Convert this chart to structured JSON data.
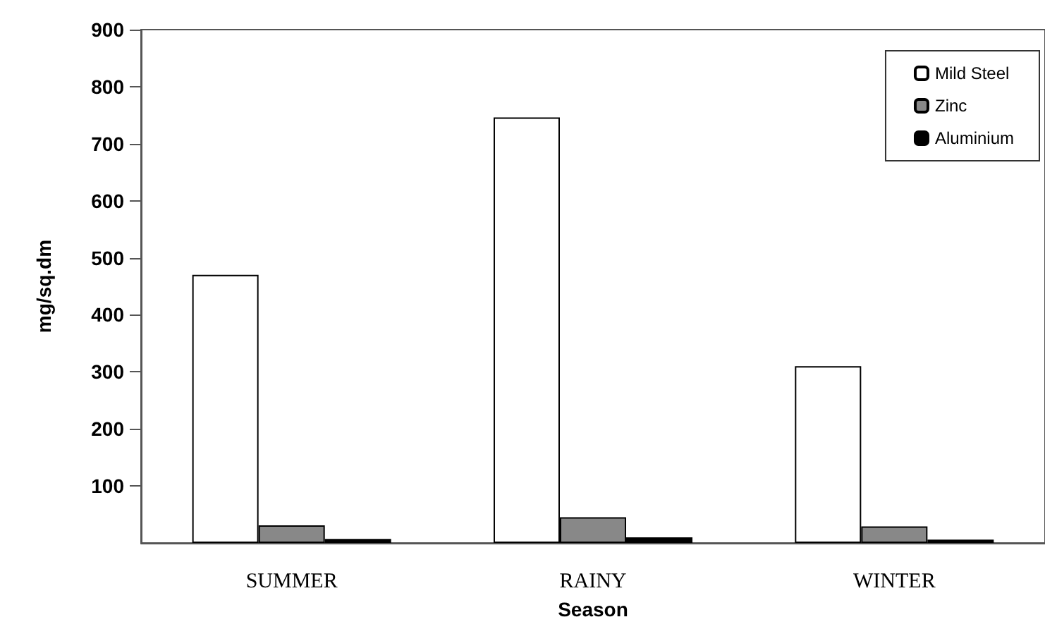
{
  "chart_data": {
    "type": "bar",
    "xlabel": "Season",
    "ylabel": "mg/sq.dm",
    "categories": [
      "SUMMER",
      "RAINY",
      "WINTER"
    ],
    "series": [
      {
        "name": "Mild Steel",
        "color": "#ffffff",
        "values": [
          470,
          746,
          310
        ]
      },
      {
        "name": "Zinc",
        "color": "#888888",
        "values": [
          31,
          45,
          29
        ]
      },
      {
        "name": "Aluminium",
        "color": "#000000",
        "values": [
          7,
          10,
          6
        ]
      }
    ],
    "ylim": [
      0,
      900
    ],
    "yticks": [
      100,
      200,
      300,
      400,
      500,
      600,
      700,
      800,
      900
    ],
    "grid": false,
    "legend": "top right"
  }
}
